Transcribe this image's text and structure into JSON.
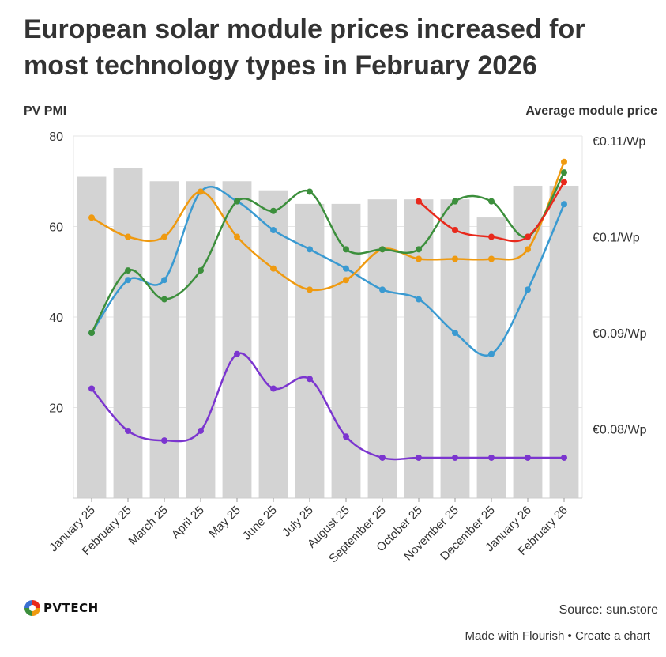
{
  "title": "European solar module prices increased for most technology types in February 2026",
  "left_axis_title": "PV PMI",
  "right_axis_title": "Average module price",
  "source": "Source: sun.store",
  "footer": {
    "made_with": "Made with Flourish",
    "separator": "•",
    "create": "Create a chart"
  },
  "logo": {
    "text": "PVTECH",
    "icon": "pvtech-logo-icon"
  },
  "colors": {
    "bars": "#d3d3d3",
    "blue": "#3a9ad1",
    "orange": "#ef9a10",
    "green": "#3c8f3c",
    "red": "#e8291c",
    "purple": "#7b35cf",
    "grid": "#e6e6e6"
  },
  "chart_data": {
    "type": "bar+line",
    "categories": [
      "January 25",
      "February 25",
      "March 25",
      "April 25",
      "May 25",
      "June 25",
      "July 25",
      "August 25",
      "September 25",
      "October 25",
      "November 25",
      "December 25",
      "January 26",
      "February 26"
    ],
    "ylim": [
      0,
      80
    ],
    "yticks": [
      20,
      40,
      60,
      80
    ],
    "ylabel": "PV PMI",
    "y2label": "Average module price",
    "y2lim": [
      0.0728,
      0.1105
    ],
    "y2ticks": [
      {
        "value": 0.08,
        "label": "€0.08/Wp"
      },
      {
        "value": 0.09,
        "label": "€0.09/Wp"
      },
      {
        "value": 0.1,
        "label": "€0.1/Wp"
      },
      {
        "value": 0.11,
        "label": "€0.11/Wp"
      }
    ],
    "bars": {
      "axis": "left",
      "values": [
        71,
        73,
        70,
        70,
        70,
        68,
        65,
        65,
        66,
        66,
        66,
        62,
        69,
        69
      ]
    },
    "series": [
      {
        "color": "blue",
        "axis": "right",
        "values": [
          0.09,
          0.0955,
          0.0955,
          0.1047,
          0.1037,
          0.1007,
          0.0987,
          0.0967,
          0.0945,
          0.0935,
          0.09,
          0.0878,
          0.0945,
          0.1034
        ]
      },
      {
        "color": "orange",
        "axis": "right",
        "values": [
          0.102,
          0.1,
          0.1,
          0.1047,
          0.1,
          0.0967,
          0.0945,
          0.0955,
          0.0987,
          0.0977,
          0.0977,
          0.0977,
          0.0987,
          0.1078
        ]
      },
      {
        "color": "green",
        "axis": "right",
        "values": [
          0.09,
          0.0965,
          0.0935,
          0.0965,
          0.1037,
          0.1027,
          0.1047,
          0.0987,
          0.0987,
          0.0987,
          0.1037,
          0.1037,
          0.1,
          0.1067
        ]
      },
      {
        "color": "red",
        "axis": "right",
        "values": [
          null,
          null,
          null,
          null,
          null,
          null,
          null,
          null,
          null,
          0.1037,
          0.1007,
          0.1,
          0.1,
          0.1057
        ]
      },
      {
        "color": "purple",
        "axis": "right",
        "values": [
          0.0842,
          0.0798,
          0.0788,
          0.0798,
          0.0878,
          0.0842,
          0.0852,
          0.0792,
          0.077,
          0.077,
          0.077,
          0.077,
          0.077,
          0.077
        ]
      }
    ],
    "grid": true,
    "legend": "none"
  }
}
